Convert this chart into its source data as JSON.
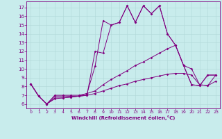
{
  "xlabel": "Windchill (Refroidissement éolien,°C)",
  "background_color": "#c8ecec",
  "line_color": "#800080",
  "xlim": [
    -0.5,
    23.5
  ],
  "ylim": [
    5.5,
    17.7
  ],
  "yticks": [
    6,
    7,
    8,
    9,
    10,
    11,
    12,
    13,
    14,
    15,
    16,
    17
  ],
  "xticks": [
    0,
    1,
    2,
    3,
    4,
    5,
    6,
    7,
    8,
    9,
    10,
    11,
    12,
    13,
    14,
    15,
    16,
    17,
    18,
    19,
    20,
    21,
    22,
    23
  ],
  "series": [
    {
      "x": [
        0,
        1,
        2,
        3,
        4,
        5,
        6,
        7,
        8,
        9,
        10,
        11,
        12,
        13,
        14,
        15,
        16,
        17,
        18,
        19,
        20,
        21,
        22,
        23
      ],
      "y": [
        8.3,
        6.9,
        6.0,
        7.0,
        7.0,
        7.0,
        7.0,
        7.2,
        10.3,
        15.5,
        15.0,
        15.3,
        17.2,
        15.3,
        17.2,
        16.3,
        17.2,
        14.0,
        12.7,
        10.4,
        8.2,
        8.1,
        9.3,
        9.3
      ]
    },
    {
      "x": [
        0,
        1,
        2,
        3,
        4,
        5,
        6,
        7,
        8,
        9,
        10,
        11,
        12,
        13,
        14,
        15,
        16,
        17,
        18,
        19,
        20,
        21,
        22,
        23
      ],
      "y": [
        8.3,
        6.9,
        6.0,
        6.9,
        6.9,
        6.9,
        6.9,
        7.0,
        12.0,
        11.8,
        15.0,
        15.3,
        17.2,
        15.3,
        17.2,
        16.3,
        17.2,
        14.0,
        12.7,
        10.4,
        8.2,
        8.1,
        9.3,
        9.3
      ]
    },
    {
      "x": [
        0,
        1,
        2,
        3,
        4,
        5,
        6,
        7,
        8,
        9,
        10,
        11,
        12,
        13,
        14,
        15,
        16,
        17,
        18,
        19,
        20,
        21,
        22,
        23
      ],
      "y": [
        8.3,
        6.9,
        6.0,
        6.7,
        6.7,
        6.8,
        6.9,
        7.2,
        7.5,
        8.2,
        8.8,
        9.3,
        9.8,
        10.4,
        10.8,
        11.3,
        11.8,
        12.3,
        12.7,
        10.4,
        10.0,
        8.2,
        8.1,
        9.3
      ]
    },
    {
      "x": [
        0,
        1,
        2,
        3,
        4,
        5,
        6,
        7,
        8,
        9,
        10,
        11,
        12,
        13,
        14,
        15,
        16,
        17,
        18,
        19,
        20,
        21,
        22,
        23
      ],
      "y": [
        8.3,
        6.9,
        6.0,
        6.6,
        6.7,
        6.8,
        6.9,
        7.0,
        7.2,
        7.5,
        7.8,
        8.1,
        8.3,
        8.6,
        8.8,
        9.0,
        9.2,
        9.4,
        9.5,
        9.5,
        9.3,
        8.2,
        8.1,
        8.6
      ]
    }
  ]
}
